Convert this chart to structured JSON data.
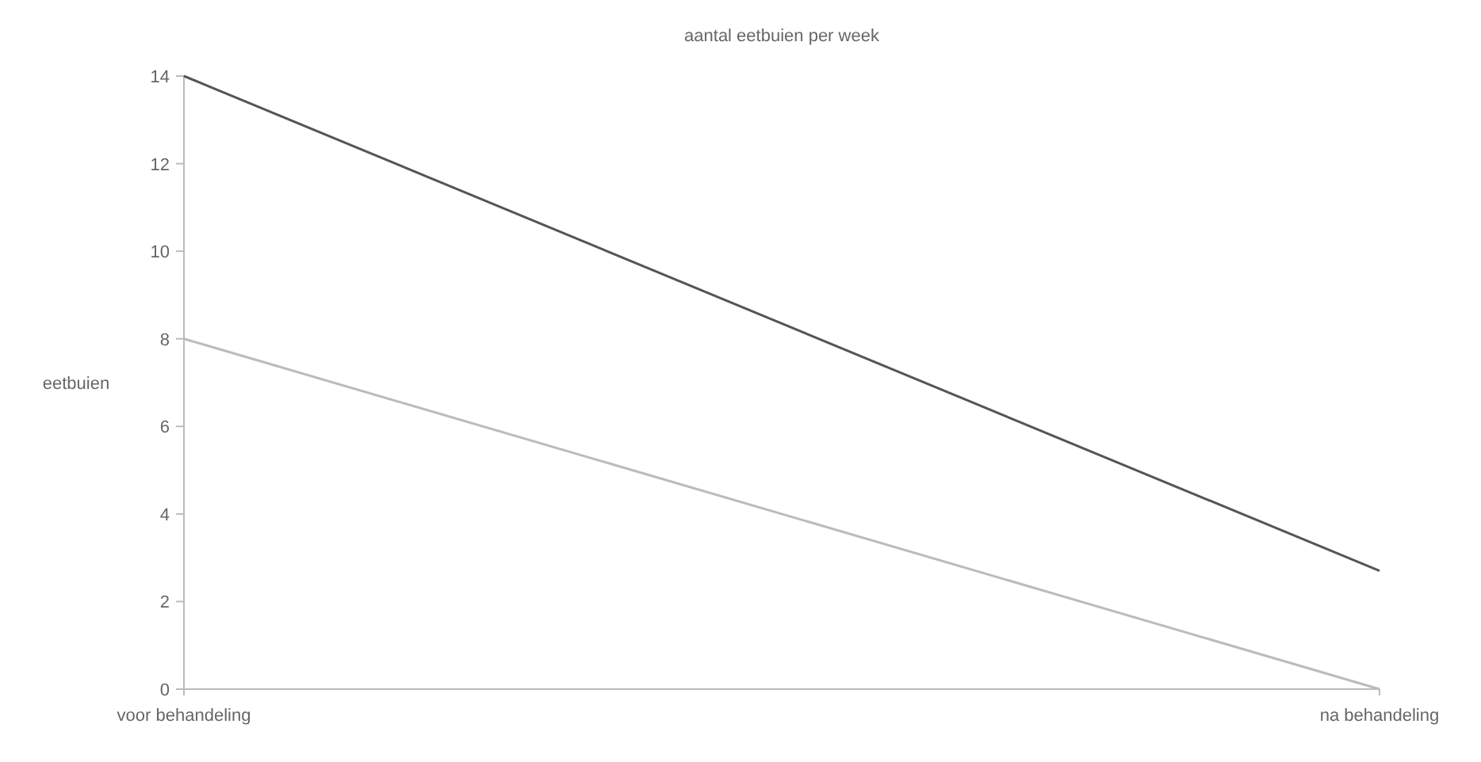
{
  "chart_data": {
    "type": "line",
    "title": "aantal eetbuien per week",
    "ylabel": "eetbuien",
    "categories": [
      "voor behandeling",
      "na behandeling"
    ],
    "series": [
      {
        "color": "#555555",
        "values": [
          14,
          2.7
        ]
      },
      {
        "color": "#bbbbbb",
        "values": [
          8,
          0
        ]
      }
    ],
    "ylim": [
      0,
      14
    ],
    "yticks": [
      0,
      2,
      4,
      6,
      8,
      10,
      12,
      14
    ],
    "marker": "none",
    "line_style": "solid"
  }
}
